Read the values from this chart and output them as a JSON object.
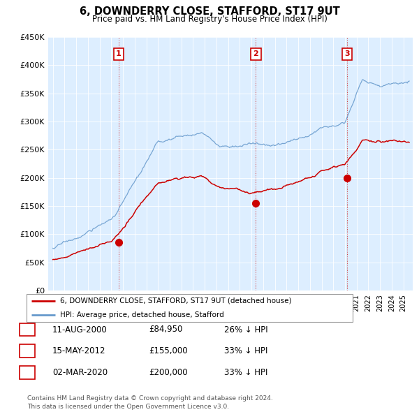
{
  "title": "6, DOWNDERRY CLOSE, STAFFORD, ST17 9UT",
  "subtitle": "Price paid vs. HM Land Registry's House Price Index (HPI)",
  "background_color": "#ffffff",
  "plot_bg_color": "#ddeeff",
  "grid_color": "#ffffff",
  "red_color": "#cc0000",
  "blue_color": "#6699cc",
  "ylim": [
    0,
    450000
  ],
  "yticks": [
    0,
    50000,
    100000,
    150000,
    200000,
    250000,
    300000,
    350000,
    400000,
    450000
  ],
  "ytick_labels": [
    "£0",
    "£50K",
    "£100K",
    "£150K",
    "£200K",
    "£250K",
    "£300K",
    "£350K",
    "£400K",
    "£450K"
  ],
  "sale_labels_info": [
    {
      "num": "1",
      "date": "11-AUG-2000",
      "price": "£84,950",
      "pct": "26% ↓ HPI"
    },
    {
      "num": "2",
      "date": "15-MAY-2012",
      "price": "£155,000",
      "pct": "33% ↓ HPI"
    },
    {
      "num": "3",
      "date": "02-MAR-2020",
      "price": "£200,000",
      "pct": "33% ↓ HPI"
    }
  ],
  "legend_line1": "6, DOWNDERRY CLOSE, STAFFORD, ST17 9UT (detached house)",
  "legend_line2": "HPI: Average price, detached house, Stafford",
  "footer": "Contains HM Land Registry data © Crown copyright and database right 2024.\nThis data is licensed under the Open Government Licence v3.0.",
  "vline_dates": [
    2000.62,
    2012.37,
    2020.17
  ],
  "sale_dates": [
    2000.62,
    2012.37,
    2020.17
  ],
  "sale_prices": [
    84950,
    155000,
    200000
  ],
  "sale_nums": [
    "1",
    "2",
    "3"
  ]
}
